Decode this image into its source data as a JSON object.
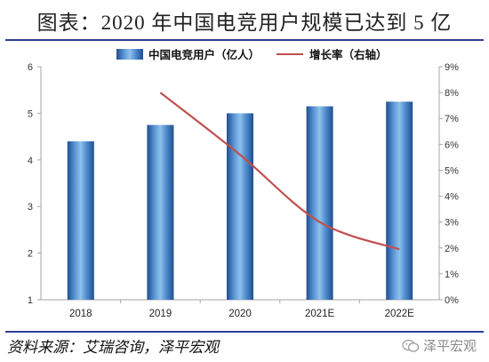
{
  "title": "图表：2020 年中国电竞用户规模已达到 5 亿",
  "source": "资料来源：艾瑞咨询，泽平宏观",
  "watermark": {
    "icon": "wechat-icon",
    "text": "泽平宏观"
  },
  "colors": {
    "bar": "#2f6db3",
    "bar_light": "#7fb2e6",
    "line": "#c0504d",
    "rule": "#2e3f96",
    "grid": "#d9d9d9"
  },
  "chart_data": {
    "type": "bar",
    "categories": [
      "2018",
      "2019",
      "2020",
      "2021E",
      "2022E"
    ],
    "series": [
      {
        "name": "中国电竞用户（亿人）",
        "type": "bar",
        "axis": "left",
        "values": [
          4.4,
          4.75,
          5.0,
          5.15,
          5.25
        ]
      },
      {
        "name": "增长率（右轴）",
        "type": "line",
        "axis": "right",
        "values": [
          null,
          0.08,
          0.056,
          0.03,
          0.0195
        ]
      }
    ],
    "ylim": [
      1,
      6
    ],
    "yticks": [
      "1",
      "2",
      "3",
      "4",
      "5",
      "6"
    ],
    "y2lim": [
      0,
      0.09
    ],
    "y2ticks": [
      "0%",
      "1%",
      "2%",
      "3%",
      "4%",
      "5%",
      "6%",
      "7%",
      "8%",
      "9%"
    ],
    "grid": false,
    "legend": "top-center"
  }
}
